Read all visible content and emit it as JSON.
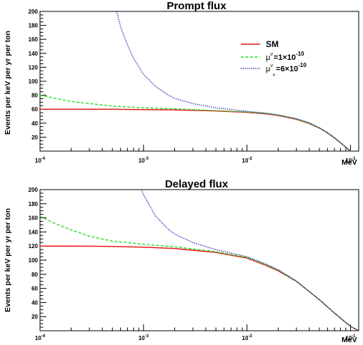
{
  "chart_data": [
    {
      "type": "line",
      "title": "Prompt flux",
      "ylabel": "Events per keV per yr per ton",
      "xlabel": "MeV",
      "x_scale": "log",
      "xlim": [
        0.0001,
        0.12
      ],
      "ylim": [
        0,
        200
      ],
      "x_ticks": [
        0.0001,
        0.001,
        0.01,
        0.1
      ],
      "x_tick_labels": [
        {
          "base": "10",
          "exp": "-4"
        },
        {
          "base": "10",
          "exp": "-3"
        },
        {
          "base": "10",
          "exp": "-2"
        },
        {
          "base": "10",
          "exp": "-1"
        }
      ],
      "y_ticks": [
        20,
        40,
        60,
        80,
        100,
        120,
        140,
        160,
        180,
        200
      ],
      "y_tick_labels": [
        "20",
        "40",
        "60",
        "80",
        "100",
        "120",
        "140",
        "160",
        "180",
        "200"
      ],
      "legend_position": "top-right",
      "legend": [
        {
          "text": "SM",
          "style": "solid",
          "color": "#e41a1c"
        },
        {
          "mu": "μ",
          "sub": "ν",
          "text": "=1×10",
          "exp": "-10",
          "style": "dashed",
          "color": "#22dd22"
        },
        {
          "mu": "μ",
          "sub": "ν",
          "subsub": "μ",
          "text": "=6×10",
          "exp": "-10",
          "style": "dotted",
          "color": "#1a1aaa"
        }
      ],
      "series": [
        {
          "color": "#e41a1c",
          "style": "solid",
          "x": [
            0.0001,
            0.0002,
            0.0005,
            0.001,
            0.002,
            0.005,
            0.01,
            0.015,
            0.02,
            0.03,
            0.04,
            0.05,
            0.06,
            0.07,
            0.08,
            0.09,
            0.1
          ],
          "y": [
            60,
            60,
            60,
            59.5,
            59,
            57.5,
            55.5,
            53.5,
            51,
            45.5,
            39.5,
            33,
            26,
            19,
            12,
            5.5,
            0
          ]
        },
        {
          "color": "#22dd22",
          "style": "dashed",
          "x": [
            0.0001,
            0.0002,
            0.0005,
            0.001,
            0.002,
            0.005,
            0.01,
            0.015,
            0.02,
            0.03,
            0.04,
            0.05,
            0.06,
            0.07,
            0.08,
            0.09,
            0.1
          ],
          "y": [
            80,
            71,
            64.5,
            62,
            60.5,
            58,
            56,
            54,
            51.5,
            46,
            40,
            33,
            26,
            19,
            12,
            5.5,
            0
          ]
        },
        {
          "color": "#1a1aaa",
          "style": "dotted",
          "x": [
            0.00055,
            0.0006,
            0.0007,
            0.0008,
            0.001,
            0.0013,
            0.0017,
            0.002,
            0.003,
            0.005,
            0.007,
            0.01,
            0.015,
            0.02,
            0.03,
            0.04,
            0.05,
            0.06,
            0.07,
            0.08,
            0.09,
            0.1
          ],
          "y": [
            200,
            178,
            152,
            133,
            110,
            93,
            81,
            75.5,
            68,
            62,
            59.5,
            57,
            54.5,
            52,
            46.5,
            40.5,
            33.5,
            26.5,
            19,
            12,
            5.5,
            0
          ]
        }
      ]
    },
    {
      "type": "line",
      "title": "Delayed flux",
      "ylabel": "Events per keV per yr per ton",
      "xlabel": "MeV",
      "x_scale": "log",
      "xlim": [
        0.0001,
        0.12
      ],
      "ylim": [
        0,
        200
      ],
      "x_ticks": [
        0.0001,
        0.001,
        0.01,
        0.1
      ],
      "x_tick_labels": [
        {
          "base": "10",
          "exp": "-4"
        },
        {
          "base": "10",
          "exp": "-3"
        },
        {
          "base": "10",
          "exp": "-2"
        },
        {
          "base": "10",
          "exp": "-1"
        }
      ],
      "y_ticks": [
        20,
        40,
        60,
        80,
        100,
        120,
        140,
        160,
        180,
        200
      ],
      "y_tick_labels": [
        "20",
        "40",
        "60",
        "80",
        "100",
        "120",
        "140",
        "160",
        "180",
        "200"
      ],
      "series": [
        {
          "color": "#e41a1c",
          "style": "solid",
          "x": [
            0.0001,
            0.0002,
            0.0005,
            0.001,
            0.002,
            0.005,
            0.01,
            0.015,
            0.02,
            0.03,
            0.05,
            0.07,
            0.1,
            0.12
          ],
          "y": [
            120,
            120,
            119.5,
            118.5,
            116.5,
            111,
            103,
            93,
            85,
            70,
            44,
            25,
            6,
            0
          ]
        },
        {
          "color": "#22dd22",
          "style": "dashed",
          "x": [
            0.0001,
            0.00015,
            0.0002,
            0.0003,
            0.0005,
            0.001,
            0.002,
            0.005,
            0.01,
            0.015,
            0.02,
            0.03,
            0.05,
            0.07,
            0.1,
            0.12
          ],
          "y": [
            162,
            150,
            143,
            134,
            127,
            122.5,
            119,
            112,
            104,
            94,
            86,
            70,
            44,
            25,
            6,
            0
          ]
        },
        {
          "color": "#1a1aaa",
          "style": "dotted",
          "x": [
            0.00095,
            0.001,
            0.0013,
            0.0017,
            0.002,
            0.003,
            0.005,
            0.007,
            0.01,
            0.015,
            0.02,
            0.03,
            0.05,
            0.07,
            0.1,
            0.12
          ],
          "y": [
            200,
            193,
            163,
            145,
            137,
            125,
            115,
            110,
            105,
            95,
            86.5,
            70.5,
            44,
            25,
            6,
            0
          ]
        }
      ]
    }
  ]
}
